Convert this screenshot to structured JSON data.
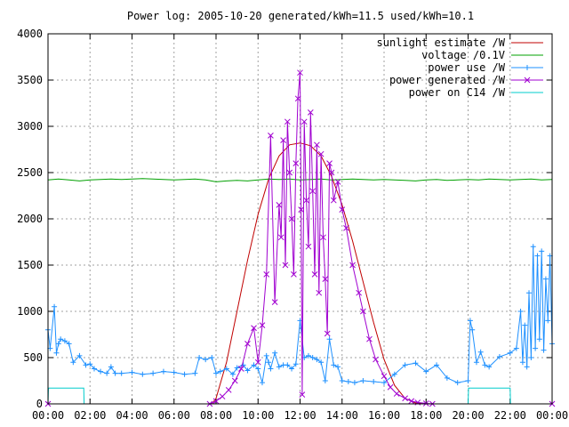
{
  "chart_data": {
    "type": "line",
    "title": "Power log: 2005-10-20 generated/kWh=11.5 used/kWh=10.1",
    "xlabel": "",
    "ylabel": "",
    "xlim": [
      0,
      24
    ],
    "ylim": [
      0,
      4000
    ],
    "grid": true,
    "legend_position": "top-right",
    "x_ticks": [
      {
        "value": 0,
        "label": "00:00"
      },
      {
        "value": 2,
        "label": "02:00"
      },
      {
        "value": 4,
        "label": "04:00"
      },
      {
        "value": 6,
        "label": "06:00"
      },
      {
        "value": 8,
        "label": "08:00"
      },
      {
        "value": 10,
        "label": "10:00"
      },
      {
        "value": 12,
        "label": "12:00"
      },
      {
        "value": 14,
        "label": "14:00"
      },
      {
        "value": 16,
        "label": "16:00"
      },
      {
        "value": 18,
        "label": "18:00"
      },
      {
        "value": 20,
        "label": "20:00"
      },
      {
        "value": 22,
        "label": "22:00"
      },
      {
        "value": 24,
        "label": "00:00"
      }
    ],
    "y_ticks": [
      {
        "value": 0,
        "label": "0"
      },
      {
        "value": 500,
        "label": "500"
      },
      {
        "value": 1000,
        "label": "1000"
      },
      {
        "value": 1500,
        "label": "1500"
      },
      {
        "value": 2000,
        "label": "2000"
      },
      {
        "value": 2500,
        "label": "2500"
      },
      {
        "value": 3000,
        "label": "3000"
      },
      {
        "value": 3500,
        "label": "3500"
      },
      {
        "value": 4000,
        "label": "4000"
      }
    ],
    "series": [
      {
        "name": "sunlight estimate /W",
        "color": "#c00000",
        "marker": "none",
        "x": [
          0,
          7.8,
          8.0,
          8.5,
          9.0,
          9.5,
          10.0,
          10.5,
          11.0,
          11.5,
          12.0,
          12.5,
          13.0,
          13.5,
          14.0,
          14.5,
          15.0,
          15.5,
          16.0,
          16.5,
          17.0,
          17.5,
          18.0,
          24
        ],
        "y": [
          0,
          0,
          60,
          450,
          1000,
          1550,
          2050,
          2430,
          2680,
          2800,
          2820,
          2790,
          2680,
          2460,
          2150,
          1760,
          1320,
          880,
          480,
          200,
          60,
          10,
          0,
          0
        ]
      },
      {
        "name": "voltage /0.1V",
        "color": "#00a000",
        "marker": "none",
        "x": [
          0,
          0.5,
          1,
          1.5,
          2,
          2.5,
          3,
          3.5,
          4,
          4.5,
          5,
          5.5,
          6,
          6.5,
          7,
          7.5,
          8,
          8.5,
          9,
          9.5,
          10,
          10.5,
          11,
          11.5,
          12,
          12.5,
          13,
          13.5,
          14,
          14.5,
          15,
          15.5,
          16,
          16.5,
          17,
          17.5,
          18,
          18.5,
          19,
          19.5,
          20,
          20.5,
          21,
          21.5,
          22,
          22.5,
          23,
          23.5,
          24
        ],
        "y": [
          2420,
          2430,
          2420,
          2410,
          2420,
          2425,
          2430,
          2425,
          2430,
          2435,
          2430,
          2425,
          2420,
          2425,
          2430,
          2420,
          2400,
          2410,
          2415,
          2410,
          2420,
          2430,
          2425,
          2430,
          2420,
          2425,
          2430,
          2420,
          2425,
          2430,
          2425,
          2420,
          2425,
          2420,
          2415,
          2410,
          2420,
          2425,
          2415,
          2420,
          2425,
          2420,
          2430,
          2425,
          2420,
          2425,
          2430,
          2420,
          2425
        ]
      },
      {
        "name": "power use /W",
        "color": "#1e90ff",
        "marker": "+",
        "x": [
          0,
          0.1,
          0.3,
          0.4,
          0.5,
          0.6,
          0.8,
          1.0,
          1.2,
          1.5,
          1.8,
          2.0,
          2.2,
          2.5,
          2.8,
          3.0,
          3.2,
          3.5,
          4.0,
          4.5,
          5.0,
          5.5,
          6.0,
          6.5,
          7.0,
          7.2,
          7.5,
          7.8,
          8.0,
          8.2,
          8.5,
          8.8,
          9.0,
          9.3,
          9.5,
          9.8,
          10.0,
          10.2,
          10.4,
          10.5,
          10.6,
          10.8,
          11.0,
          11.2,
          11.4,
          11.6,
          11.8,
          12.0,
          12.2,
          12.4,
          12.6,
          12.8,
          13.0,
          13.2,
          13.4,
          13.6,
          13.8,
          14.0,
          14.3,
          14.6,
          15.0,
          15.5,
          16.0,
          16.5,
          17.0,
          17.5,
          18.0,
          18.5,
          19.0,
          19.5,
          20.0,
          20.1,
          20.2,
          20.4,
          20.6,
          20.8,
          21.0,
          21.5,
          22.0,
          22.3,
          22.5,
          22.6,
          22.7,
          22.8,
          22.9,
          23.0,
          23.1,
          23.2,
          23.3,
          23.4,
          23.5,
          23.6,
          23.7,
          23.8,
          23.9,
          24.0
        ],
        "y": [
          800,
          600,
          1050,
          550,
          650,
          700,
          680,
          650,
          450,
          520,
          420,
          430,
          380,
          350,
          330,
          400,
          330,
          330,
          340,
          320,
          330,
          350,
          340,
          320,
          330,
          500,
          480,
          500,
          330,
          350,
          380,
          320,
          390,
          420,
          360,
          420,
          380,
          230,
          520,
          450,
          380,
          550,
          400,
          420,
          420,
          380,
          430,
          900,
          500,
          520,
          500,
          480,
          450,
          250,
          700,
          420,
          400,
          250,
          240,
          230,
          250,
          240,
          230,
          320,
          420,
          440,
          350,
          420,
          280,
          230,
          250,
          900,
          800,
          450,
          560,
          420,
          400,
          510,
          550,
          600,
          1000,
          450,
          850,
          400,
          1200,
          500,
          1700,
          600,
          1600,
          700,
          1650,
          580,
          1350,
          900,
          1600,
          650
        ]
      },
      {
        "name": "power generated /W",
        "color": "#a000d0",
        "marker": "x",
        "x": [
          0,
          7.7,
          8.0,
          8.3,
          8.6,
          8.9,
          9.2,
          9.5,
          9.8,
          10.0,
          10.2,
          10.4,
          10.6,
          10.8,
          11.0,
          11.1,
          11.2,
          11.3,
          11.4,
          11.5,
          11.6,
          11.7,
          11.8,
          11.9,
          12.0,
          12.05,
          12.1,
          12.2,
          12.3,
          12.4,
          12.5,
          12.6,
          12.7,
          12.8,
          12.9,
          13.0,
          13.1,
          13.2,
          13.3,
          13.4,
          13.5,
          13.6,
          13.8,
          14.0,
          14.2,
          14.5,
          14.8,
          15.0,
          15.3,
          15.6,
          16.0,
          16.3,
          16.6,
          17.0,
          17.3,
          17.6,
          18.0,
          18.3,
          24
        ],
        "y": [
          0,
          0,
          30,
          80,
          150,
          250,
          380,
          650,
          820,
          450,
          850,
          1400,
          2900,
          1100,
          2150,
          1800,
          2850,
          1500,
          3050,
          2500,
          2000,
          1400,
          2600,
          3300,
          3580,
          2100,
          100,
          3050,
          2200,
          1700,
          3150,
          2300,
          1400,
          2800,
          1200,
          2700,
          1800,
          1350,
          760,
          2600,
          2500,
          2200,
          2400,
          2100,
          1900,
          1500,
          1200,
          1000,
          700,
          480,
          300,
          180,
          110,
          60,
          30,
          15,
          5,
          0,
          0
        ]
      },
      {
        "name": "power on C14 /W",
        "color": "#00cccc",
        "marker": "none",
        "x": [
          0,
          0.02,
          1.7,
          1.72,
          20.0,
          20.02,
          22.0,
          22.02,
          24
        ],
        "y": [
          0,
          170,
          170,
          0,
          0,
          170,
          170,
          0,
          0
        ]
      }
    ]
  }
}
